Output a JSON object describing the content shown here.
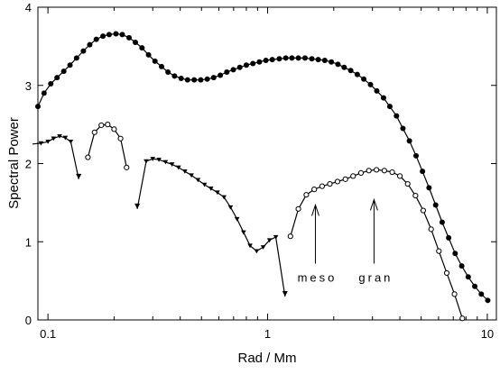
{
  "chart_data": {
    "type": "line",
    "xlabel": "Rad / Mm",
    "ylabel": "Spectral Power",
    "xscale": "log",
    "xlim": [
      0.09,
      11
    ],
    "ylim": [
      0,
      4
    ],
    "x_ticks": [
      {
        "value": 0.1,
        "label": "0.1"
      },
      {
        "value": 1,
        "label": "1"
      },
      {
        "value": 10,
        "label": "10"
      }
    ],
    "y_ticks": [
      {
        "value": 0,
        "label": "0"
      },
      {
        "value": 1,
        "label": "1"
      },
      {
        "value": 2,
        "label": "2"
      },
      {
        "value": 3,
        "label": "3"
      },
      {
        "value": 4,
        "label": "4"
      }
    ],
    "grid": false,
    "series": [
      {
        "marker": "filled-circle",
        "x": [
          0.09,
          0.096,
          0.103,
          0.11,
          0.118,
          0.126,
          0.135,
          0.145,
          0.155,
          0.166,
          0.178,
          0.19,
          0.204,
          0.218,
          0.234,
          0.25,
          0.268,
          0.287,
          0.307,
          0.329,
          0.352,
          0.377,
          0.404,
          0.432,
          0.463,
          0.496,
          0.531,
          0.568,
          0.609,
          0.652,
          0.698,
          0.747,
          0.8,
          0.857,
          0.917,
          0.982,
          1.05,
          1.13,
          1.21,
          1.29,
          1.38,
          1.48,
          1.59,
          1.7,
          1.82,
          1.95,
          2.09,
          2.23,
          2.39,
          2.56,
          2.74,
          2.94,
          3.14,
          3.37,
          3.6,
          3.86,
          4.13,
          4.42,
          4.74,
          5.07,
          5.43,
          5.82,
          6.23,
          6.67,
          7.14,
          7.65,
          8.19,
          8.77,
          9.39,
          10.05
        ],
        "y": [
          2.73,
          2.9,
          3.02,
          3.1,
          3.18,
          3.26,
          3.35,
          3.44,
          3.52,
          3.59,
          3.63,
          3.65,
          3.66,
          3.65,
          3.61,
          3.55,
          3.48,
          3.39,
          3.31,
          3.24,
          3.17,
          3.12,
          3.09,
          3.07,
          3.07,
          3.07,
          3.08,
          3.1,
          3.13,
          3.17,
          3.2,
          3.23,
          3.26,
          3.28,
          3.3,
          3.32,
          3.33,
          3.34,
          3.35,
          3.35,
          3.35,
          3.35,
          3.34,
          3.33,
          3.32,
          3.3,
          3.27,
          3.23,
          3.19,
          3.14,
          3.08,
          3.01,
          2.93,
          2.84,
          2.73,
          2.61,
          2.45,
          2.29,
          2.1,
          1.9,
          1.69,
          1.47,
          1.25,
          1.05,
          0.85,
          0.69,
          0.55,
          0.43,
          0.33,
          0.25
        ]
      },
      {
        "marker": "down-triangle",
        "x": [
          0.085,
          0.093,
          0.1,
          0.106,
          0.113,
          0.12,
          0.127
        ],
        "y": [
          2.25,
          2.26,
          2.28,
          2.32,
          2.35,
          2.33,
          2.28
        ],
        "end": {
          "x": 0.138,
          "y": 1.8
        }
      },
      {
        "marker": "open-circle",
        "x": [
          0.152,
          0.163,
          0.175,
          0.187,
          0.2,
          0.214,
          0.228
        ],
        "y": [
          2.08,
          2.4,
          2.49,
          2.5,
          2.44,
          2.32,
          1.95
        ]
      },
      {
        "marker": "down-triangle",
        "x": [
          0.28,
          0.3,
          0.32,
          0.343,
          0.367,
          0.393,
          0.42,
          0.45,
          0.482,
          0.516,
          0.552,
          0.591,
          0.633,
          0.678,
          0.726,
          0.777,
          0.832,
          0.891,
          0.954,
          1.02,
          1.09
        ],
        "y": [
          2.03,
          2.06,
          2.05,
          2.02,
          1.99,
          1.95,
          1.9,
          1.85,
          1.79,
          1.73,
          1.68,
          1.63,
          1.57,
          1.44,
          1.29,
          1.12,
          0.95,
          0.88,
          0.93,
          1.02,
          1.06
        ],
        "start": {
          "x": 0.255,
          "y": 1.42
        },
        "end": {
          "x": 1.2,
          "y": 0.3
        }
      },
      {
        "marker": "open-circle",
        "x": [
          1.27,
          1.38,
          1.5,
          1.63,
          1.77,
          1.92,
          2.08,
          2.26,
          2.45,
          2.66,
          2.89,
          3.13,
          3.4,
          3.69,
          4,
          4.34,
          4.71,
          5.11,
          5.55,
          6.02,
          6.54,
          7.09,
          7.7
        ],
        "y": [
          1.07,
          1.42,
          1.6,
          1.67,
          1.71,
          1.74,
          1.77,
          1.8,
          1.84,
          1.88,
          1.91,
          1.92,
          1.91,
          1.89,
          1.84,
          1.74,
          1.59,
          1.4,
          1.16,
          0.88,
          0.6,
          0.33,
          0.02
        ]
      }
    ],
    "annotations": [
      {
        "text": "meso",
        "x": 1.65,
        "arrow_from_y": 0.72,
        "arrow_to_y": 1.47
      },
      {
        "text": "gran",
        "x": 3.05,
        "arrow_from_y": 0.72,
        "arrow_to_y": 1.54
      }
    ]
  }
}
